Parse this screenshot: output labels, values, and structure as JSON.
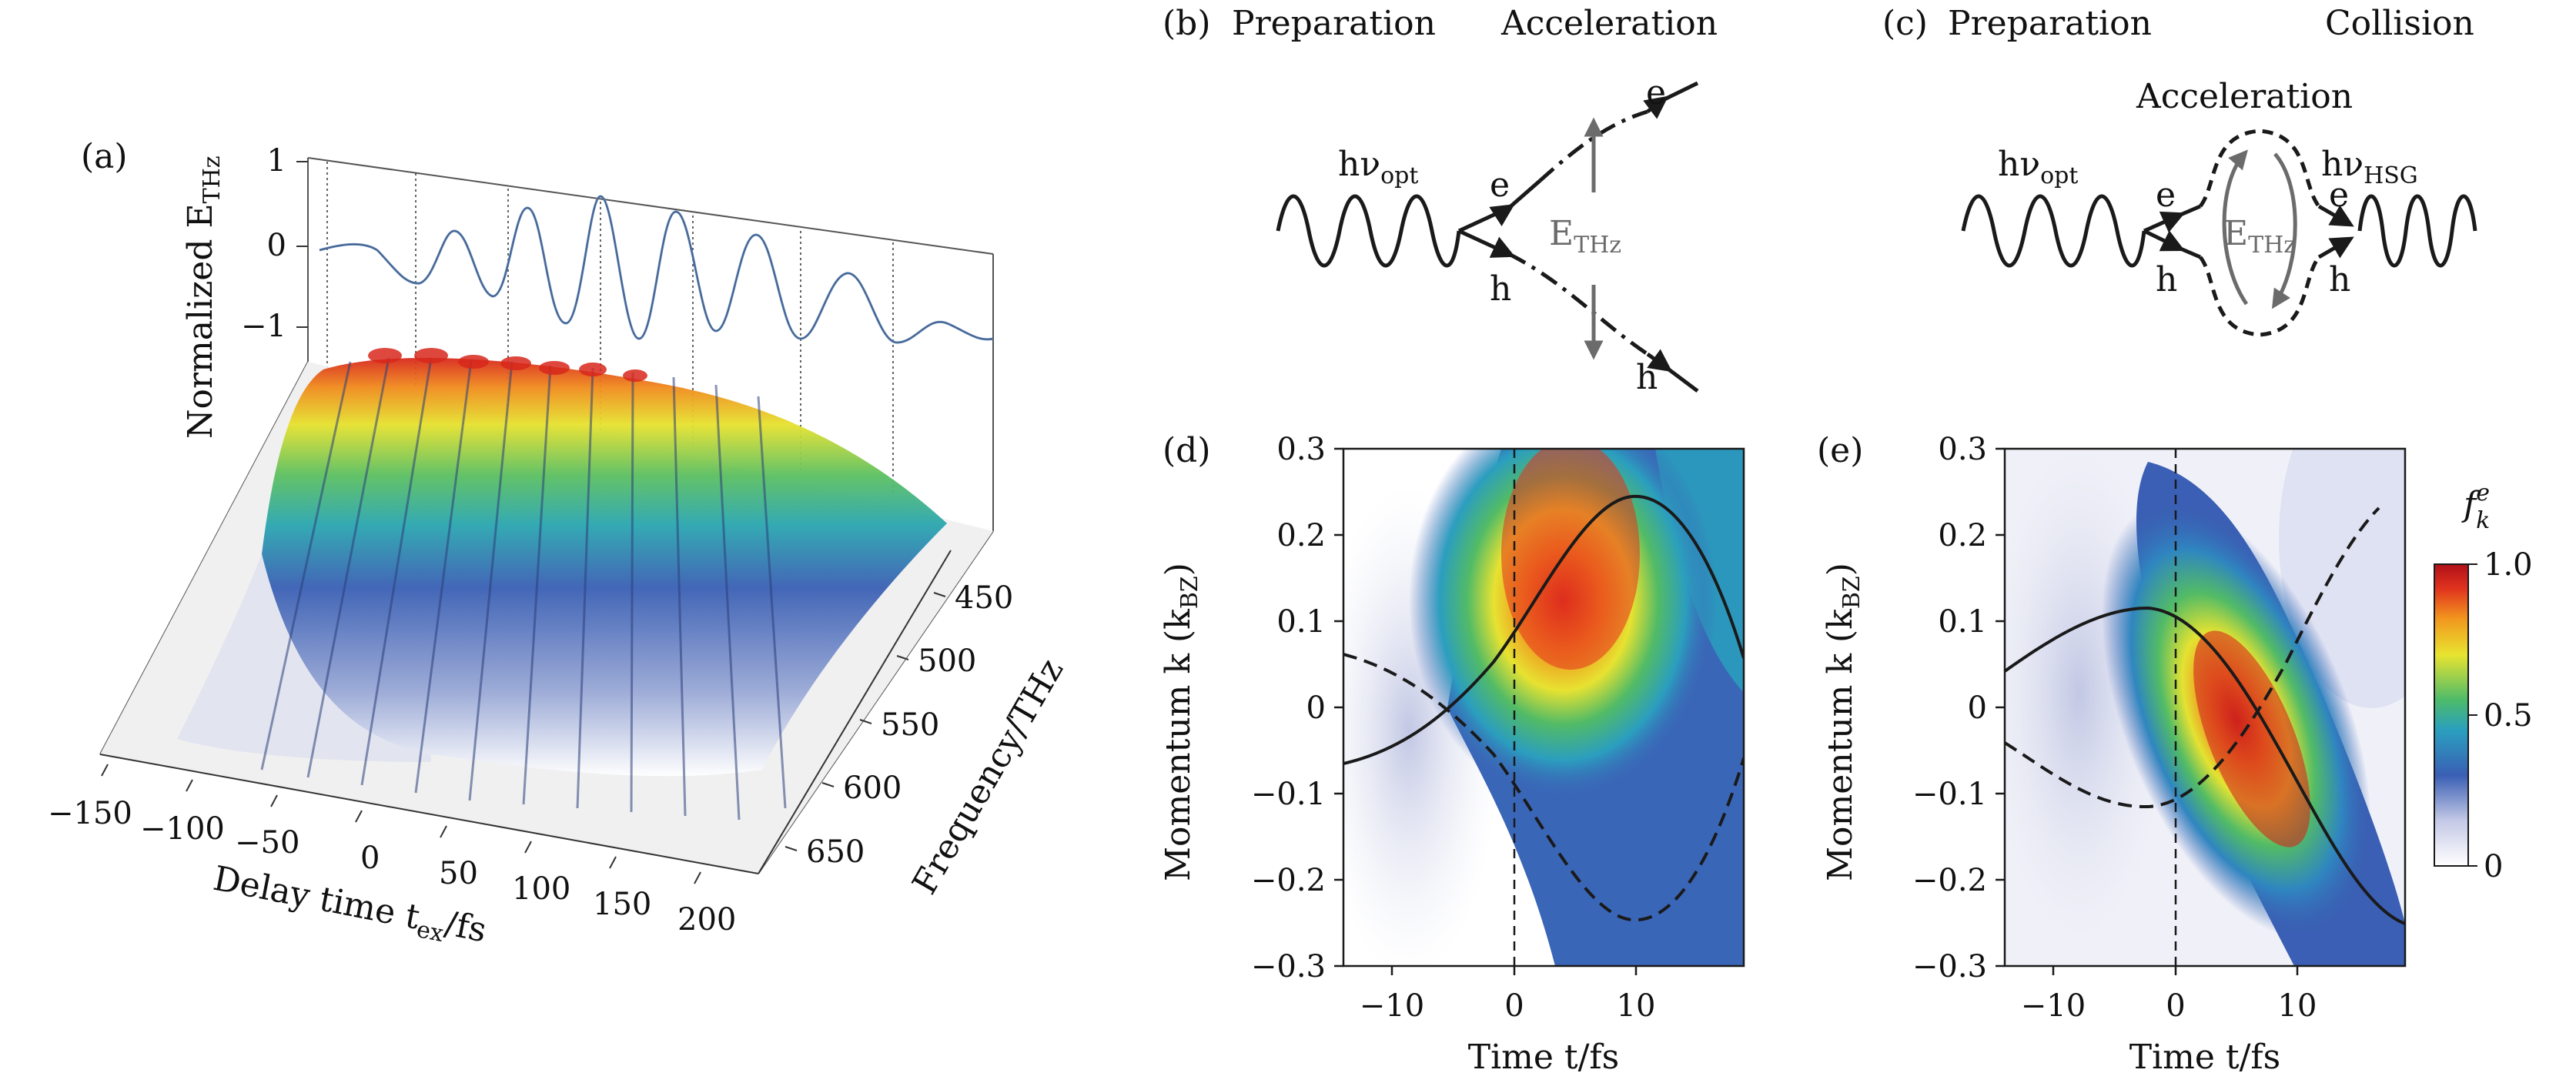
{
  "panels": {
    "a": {
      "label": "(a)",
      "e_axis_label": "Normalized E",
      "e_axis_sub": "THz",
      "e_ticks": [
        "1",
        "0",
        "−1"
      ],
      "delay_ticks": [
        "−150",
        "−100",
        "−50",
        "0",
        "50",
        "100",
        "150",
        "200"
      ],
      "delay_label": "Delay time t",
      "delay_sub": "ex",
      "delay_unit": "/fs",
      "freq_ticks": [
        "450",
        "500",
        "550",
        "600",
        "650"
      ],
      "freq_label": "Frequency/THz"
    },
    "b": {
      "label": "(b)",
      "title_left": "Preparation",
      "title_right": "Acceleration",
      "photon": "hν",
      "photon_sub": "opt",
      "electron": "e",
      "hole": "h",
      "field": "E",
      "field_sub": "THz"
    },
    "c": {
      "label": "(c)",
      "title_left": "Preparation",
      "title_middle": "Acceleration",
      "title_right": "Collision",
      "photon_in": "hν",
      "photon_in_sub": "opt",
      "photon_out": "hν",
      "photon_out_sub": "HSG",
      "electron": "e",
      "hole": "h",
      "field": "E",
      "field_sub": "THz"
    },
    "d": {
      "label": "(d)",
      "y_label": "Momentum k (k",
      "y_sub": "BZ",
      "y_close": ")",
      "y_ticks": [
        "0.3",
        "0.2",
        "0.1",
        "0",
        "−0.1",
        "−0.2",
        "−0.3"
      ],
      "x_ticks": [
        "−10",
        "0",
        "10"
      ],
      "x_label": "Time t/fs"
    },
    "e": {
      "label": "(e)",
      "y_label": "Momentum k (k",
      "y_sub": "BZ",
      "y_close": ")",
      "y_ticks": [
        "0.3",
        "0.2",
        "0.1",
        "0",
        "−0.1",
        "−0.2",
        "−0.3"
      ],
      "x_ticks": [
        "−10",
        "0",
        "10"
      ],
      "x_label": "Time t/fs"
    }
  },
  "colorbar": {
    "label": "f",
    "label_sup": "e",
    "label_sub": "k",
    "ticks": [
      "1.0",
      "0.5",
      "0"
    ]
  },
  "colors": {
    "line": "#1a1a1a",
    "field_arrow": "#6b6b6b",
    "colormap": [
      "#ffffff",
      "#c4c9e6",
      "#3a5fb4",
      "#2a9fbf",
      "#4dbb6a",
      "#e8e430",
      "#f2961e",
      "#e0321e",
      "#b0101a"
    ]
  }
}
